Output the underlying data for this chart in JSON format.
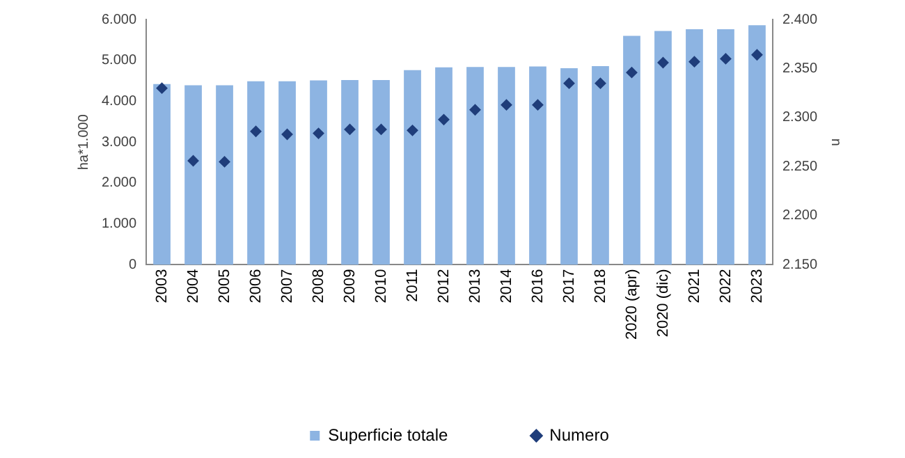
{
  "chart_data": {
    "type": "bar",
    "ylabel": "ha*1.000",
    "y2label": "n",
    "categories": [
      "2003",
      "2004",
      "2005",
      "2006",
      "2007",
      "2008",
      "2009",
      "2010",
      "2011",
      "2012",
      "2013",
      "2014",
      "2016",
      "2017",
      "2018",
      "2020 (apr)",
      "2020 (dic)",
      "2021",
      "2022",
      "2023"
    ],
    "series": [
      {
        "name": "Superficie totale",
        "color": "#8db4e2",
        "values": [
          4420,
          4390,
          4390,
          4490,
          4490,
          4510,
          4520,
          4520,
          4760,
          4830,
          4840,
          4840,
          4850,
          4810,
          4860,
          5600,
          5720,
          5760,
          5760,
          5860
        ]
      },
      {
        "name": "Numero",
        "type": "scatter",
        "axis": "y2",
        "marker": "diamond",
        "color": "#1f3d7a",
        "values": [
          2330,
          2256,
          2255,
          2286,
          2283,
          2284,
          2288,
          2288,
          2287,
          2298,
          2308,
          2313,
          2313,
          2335,
          2335,
          2346,
          2356,
          2357,
          2360,
          2364
        ]
      }
    ],
    "ylim": [
      0,
      6000
    ],
    "yticks": [
      0,
      {
        "value": 1000,
        "label": "1.000"
      },
      {
        "value": 2000,
        "label": "2.000"
      },
      {
        "value": 3000,
        "label": "3.000"
      },
      {
        "value": 4000,
        "label": "4.000"
      },
      {
        "value": 5000,
        "label": "5.000"
      },
      {
        "value": 6000,
        "label": "6.000"
      }
    ],
    "y2lim": [
      2150,
      2400
    ],
    "y2ticks": [
      {
        "value": 2150,
        "label": "2.150"
      },
      {
        "value": 2200,
        "label": "2.200"
      },
      {
        "value": 2250,
        "label": "2.250"
      },
      {
        "value": 2300,
        "label": "2.300"
      },
      {
        "value": 2350,
        "label": "2.350"
      },
      {
        "value": 2400,
        "label": "2.400"
      }
    ],
    "grid": false,
    "legend": "bottom"
  }
}
